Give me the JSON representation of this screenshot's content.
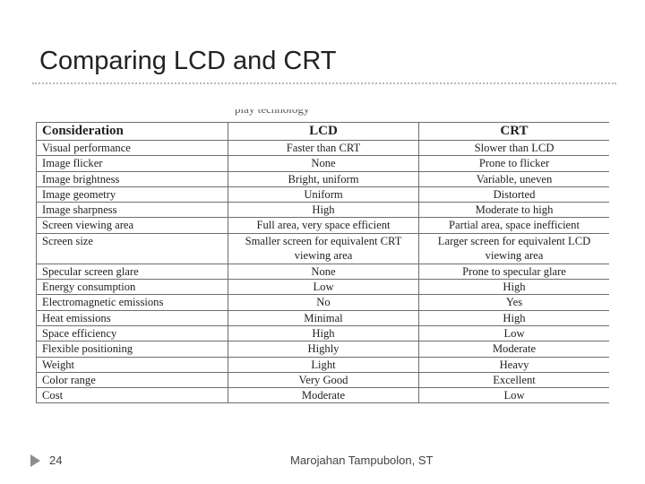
{
  "slide": {
    "title": "Comparing LCD and CRT",
    "top_fragment": "play technology",
    "footer_page": "24",
    "footer_author": "Marojahan Tampubolon, ST"
  },
  "table": {
    "headers": [
      "Consideration",
      "LCD",
      "CRT"
    ],
    "rows": [
      [
        "Visual performance",
        "Faster than CRT",
        "Slower than LCD"
      ],
      [
        "Image flicker",
        "None",
        "Prone to flicker"
      ],
      [
        "Image brightness",
        "Bright, uniform",
        "Variable, uneven"
      ],
      [
        "Image geometry",
        "Uniform",
        "Distorted"
      ],
      [
        "Image sharpness",
        "High",
        "Moderate to high"
      ],
      [
        "Screen viewing area",
        "Full area, very space efficient",
        "Partial area, space inefficient"
      ],
      [
        "Screen size",
        "Smaller screen for equivalent CRT viewing area",
        "Larger screen for equivalent LCD viewing area"
      ],
      [
        "Specular screen glare",
        "None",
        "Prone to specular glare"
      ],
      [
        "Energy consumption",
        "Low",
        "High"
      ],
      [
        "Electromagnetic emissions",
        "No",
        "Yes"
      ],
      [
        "Heat emissions",
        "Minimal",
        "High"
      ],
      [
        "Space efficiency",
        "High",
        "Low"
      ],
      [
        "Flexible positioning",
        "Highly",
        "Moderate"
      ],
      [
        "Weight",
        "Light",
        "Heavy"
      ],
      [
        "Color range",
        "Very Good",
        "Excellent"
      ],
      [
        "Cost",
        "Moderate",
        "Low"
      ]
    ]
  }
}
